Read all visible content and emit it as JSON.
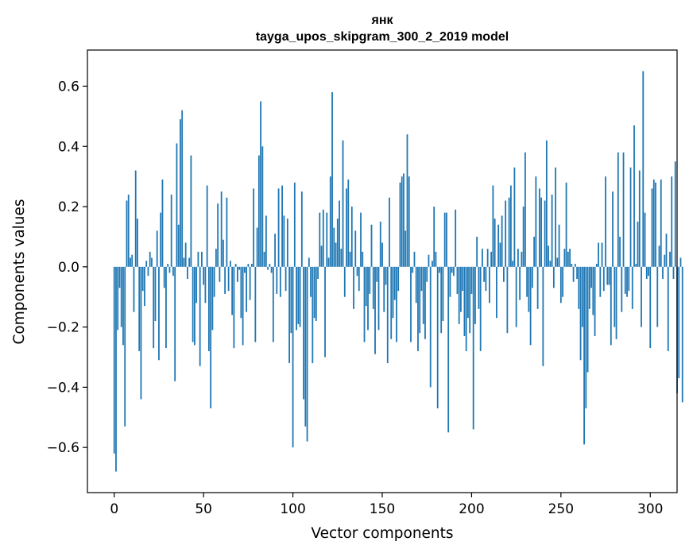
{
  "chart_data": {
    "type": "bar",
    "title": "янк",
    "subtitle": "tayga_upos_skipgram_300_2_2019 model",
    "xlabel": "Vector components",
    "ylabel": "Components values",
    "xlim": [
      -15,
      315
    ],
    "ylim": [
      -0.75,
      0.72
    ],
    "xticks": [
      0,
      50,
      100,
      150,
      200,
      250,
      300
    ],
    "yticks": [
      -0.6,
      -0.4,
      -0.2,
      0.0,
      0.2,
      0.4,
      0.6
    ],
    "ytick_labels": [
      "−0.6",
      "−0.4",
      "−0.2",
      "0.0",
      "0.2",
      "0.4",
      "0.6"
    ],
    "bar_color": "#1f77b4",
    "values": [
      -0.62,
      -0.68,
      -0.21,
      -0.07,
      -0.2,
      -0.26,
      -0.53,
      0.22,
      0.24,
      0.03,
      0.04,
      -0.15,
      0.32,
      0.16,
      -0.28,
      -0.44,
      -0.08,
      -0.13,
      0.02,
      -0.03,
      0.05,
      0.03,
      -0.27,
      -0.18,
      0.12,
      -0.31,
      0.18,
      0.29,
      -0.07,
      -0.27,
      0.01,
      -0.02,
      0.24,
      -0.03,
      -0.38,
      0.41,
      0.14,
      0.49,
      0.52,
      0.03,
      0.08,
      -0.04,
      0.03,
      0.37,
      -0.25,
      -0.26,
      -0.12,
      0.05,
      -0.33,
      0.05,
      -0.06,
      -0.12,
      0.27,
      -0.28,
      -0.47,
      -0.21,
      -0.1,
      0.06,
      0.21,
      -0.05,
      0.25,
      0.09,
      -0.09,
      0.23,
      -0.08,
      0.02,
      -0.16,
      -0.27,
      0.01,
      -0.05,
      -0.01,
      -0.17,
      -0.26,
      -0.02,
      -0.15,
      0.01,
      -0.11,
      0.01,
      0.26,
      -0.25,
      0.13,
      0.37,
      0.55,
      0.4,
      0.05,
      0.17,
      -0.01,
      0.01,
      -0.02,
      -0.25,
      0.11,
      -0.09,
      0.26,
      -0.1,
      0.27,
      0.17,
      -0.08,
      0.16,
      -0.32,
      -0.22,
      -0.6,
      0.28,
      -0.21,
      -0.19,
      -0.2,
      0.25,
      -0.44,
      -0.53,
      -0.58,
      0.03,
      -0.1,
      -0.32,
      -0.17,
      -0.18,
      -0.04,
      0.18,
      0.07,
      0.19,
      -0.3,
      0.18,
      0.03,
      0.3,
      0.58,
      0.13,
      0.08,
      0.16,
      0.22,
      0.06,
      0.42,
      -0.1,
      0.26,
      0.29,
      0.05,
      0.2,
      -0.14,
      0.12,
      -0.03,
      -0.08,
      0.18,
      0.05,
      -0.25,
      -0.13,
      -0.21,
      -0.09,
      0.14,
      -0.14,
      -0.29,
      -0.05,
      -0.21,
      0.15,
      0.08,
      -0.15,
      -0.06,
      -0.32,
      0.23,
      -0.24,
      -0.17,
      -0.11,
      -0.25,
      -0.08,
      0.28,
      0.3,
      0.31,
      0.12,
      0.44,
      0.3,
      -0.25,
      -0.02,
      0.05,
      -0.12,
      -0.28,
      -0.22,
      -0.08,
      -0.19,
      -0.24,
      -0.05,
      0.04,
      -0.4,
      0.02,
      0.2,
      0.05,
      -0.47,
      -0.02,
      -0.22,
      -0.18,
      0.18,
      0.18,
      -0.55,
      -0.1,
      -0.02,
      -0.03,
      0.19,
      -0.09,
      -0.19,
      -0.15,
      -0.08,
      -0.23,
      -0.28,
      -0.17,
      -0.22,
      -0.09,
      -0.54,
      -0.19,
      0.1,
      -0.14,
      -0.28,
      0.06,
      -0.05,
      -0.08,
      0.06,
      -0.12,
      0.05,
      0.27,
      0.16,
      -0.17,
      0.14,
      0.08,
      0.17,
      -0.05,
      0.22,
      -0.22,
      0.23,
      0.27,
      0.02,
      0.33,
      -0.2,
      0.06,
      -0.11,
      0.05,
      0.2,
      0.38,
      -0.1,
      -0.15,
      -0.26,
      -0.07,
      0.1,
      0.3,
      -0.14,
      0.26,
      0.23,
      -0.33,
      0.22,
      0.42,
      0.07,
      0.02,
      0.24,
      -0.07,
      0.33,
      0.03,
      0.14,
      -0.12,
      -0.1,
      0.06,
      0.28,
      0.05,
      0.06,
      0.01,
      -0.05,
      0.01,
      -0.04,
      -0.14,
      -0.31,
      -0.2,
      -0.59,
      -0.47,
      -0.35,
      -0.14,
      -0.07,
      -0.16,
      -0.23,
      0.01,
      0.08,
      -0.1,
      0.08,
      -0.08,
      0.3,
      -0.06,
      -0.06,
      -0.26,
      0.25,
      -0.2,
      -0.24,
      0.38,
      0.1,
      -0.15,
      0.38,
      -0.09,
      -0.1,
      -0.08,
      0.33,
      -0.14,
      0.47,
      0.01,
      0.15,
      0.32,
      -0.2,
      0.65,
      0.18,
      -0.04,
      -0.03,
      -0.27,
      0.26,
      0.29,
      0.28,
      -0.2,
      0.07,
      0.29,
      -0.04,
      0.04,
      0.11,
      -0.28,
      0.05,
      0.3,
      -0.04,
      0.35,
      -0.42,
      -0.37,
      0.03,
      -0.45
    ]
  }
}
